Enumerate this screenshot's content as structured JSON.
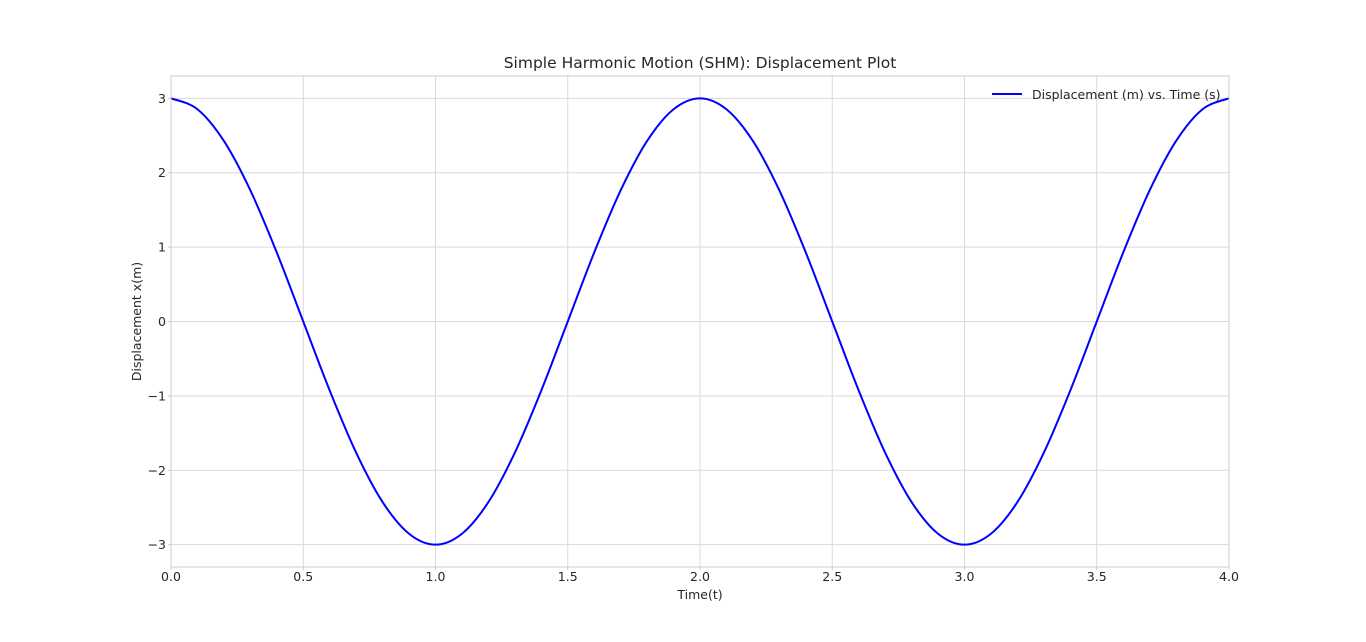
{
  "chart_data": {
    "type": "line",
    "title": "Simple Harmonic Motion (SHM): Displacement Plot",
    "xlabel": "Time(t)",
    "ylabel": "Displacement x(m)",
    "xlim": [
      0,
      4
    ],
    "ylim": [
      -3.3,
      3.3
    ],
    "x_ticks": [
      0.0,
      0.5,
      1.0,
      1.5,
      2.0,
      2.5,
      3.0,
      3.5,
      4.0
    ],
    "x_tick_labels": [
      "0.0",
      "0.5",
      "1.0",
      "1.5",
      "2.0",
      "2.5",
      "3.0",
      "3.5",
      "4.0"
    ],
    "y_ticks": [
      3,
      2,
      1,
      0,
      -1,
      -2,
      -3
    ],
    "y_tick_labels": [
      "3",
      "2",
      "1",
      "0",
      "−1",
      "−2",
      "−3"
    ],
    "grid": true,
    "legend_position": "top-right",
    "series": [
      {
        "name": "Displacement (m) vs. Time (s)",
        "color": "#0000ff",
        "x": [
          0.0,
          0.1,
          0.2,
          0.3,
          0.4,
          0.5,
          0.6,
          0.7,
          0.8,
          0.9,
          1.0,
          1.1,
          1.2,
          1.3,
          1.4,
          1.5,
          1.6,
          1.7,
          1.8,
          1.9,
          2.0,
          2.1,
          2.2,
          2.3,
          2.4,
          2.5,
          2.6,
          2.7,
          2.8,
          2.9,
          3.0,
          3.1,
          3.2,
          3.3,
          3.4,
          3.5,
          3.6,
          3.7,
          3.8,
          3.9,
          4.0
        ],
        "y": [
          3.0,
          2.853,
          2.427,
          1.763,
          0.927,
          0.0,
          -0.927,
          -1.763,
          -2.427,
          -2.853,
          -3.0,
          -2.853,
          -2.427,
          -1.763,
          -0.927,
          0.0,
          0.927,
          1.763,
          2.427,
          2.853,
          3.0,
          2.853,
          2.427,
          1.763,
          0.927,
          0.0,
          -0.927,
          -1.763,
          -2.427,
          -2.853,
          -3.0,
          -2.853,
          -2.427,
          -1.763,
          -0.927,
          0.0,
          0.927,
          1.763,
          2.427,
          2.853,
          3.0
        ]
      }
    ]
  }
}
